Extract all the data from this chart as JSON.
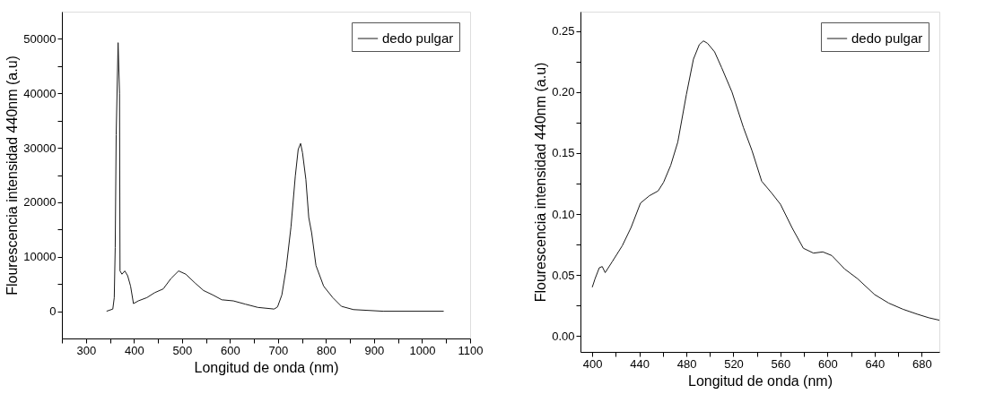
{
  "chart_data": [
    {
      "type": "line",
      "xlabel": "Longitud de onda (nm)",
      "ylabel": "Flourescencia intensidad 440nm (a.u)",
      "xlim": [
        250,
        1100
      ],
      "ylim": [
        -5000,
        55000
      ],
      "xticks": [
        {
          "value": 250,
          "label": null
        },
        300,
        {
          "value": 350,
          "label": null
        },
        400,
        {
          "value": 450,
          "label": null
        },
        500,
        {
          "value": 550,
          "label": null
        },
        600,
        {
          "value": 650,
          "label": null
        },
        700,
        {
          "value": 750,
          "label": null
        },
        800,
        {
          "value": 850,
          "label": null
        },
        900,
        {
          "value": 950,
          "label": null
        },
        1000,
        {
          "value": 1050,
          "label": null
        },
        1100
      ],
      "yticks": [
        0,
        {
          "value": 5000,
          "label": null
        },
        10000,
        {
          "value": 15000,
          "label": null
        },
        20000,
        {
          "value": 25000,
          "label": null
        },
        30000,
        {
          "value": 35000,
          "label": null
        },
        40000,
        {
          "value": 45000,
          "label": null
        },
        50000
      ],
      "legend": "top right",
      "series": [
        {
          "name": "dedo pulgar",
          "color": "#1a1a1a",
          "x": [
            343,
            356,
            359,
            361,
            363,
            367,
            370,
            371,
            375,
            381,
            387,
            393,
            399,
            409,
            427,
            443,
            461,
            477,
            493,
            508,
            527,
            545,
            564,
            583,
            607,
            632,
            658,
            692,
            699,
            708,
            717,
            727,
            736,
            742,
            747,
            751,
            758,
            764,
            770,
            779,
            795,
            814,
            832,
            857,
            919,
            1045
          ],
          "values": [
            0,
            400,
            2500,
            11700,
            32400,
            49300,
            40000,
            7400,
            6800,
            7400,
            6500,
            4600,
            1400,
            1900,
            2500,
            3400,
            4100,
            6000,
            7400,
            6800,
            5200,
            3800,
            3000,
            2100,
            1900,
            1300,
            700,
            400,
            800,
            3000,
            7900,
            15500,
            24800,
            29700,
            30800,
            29100,
            24200,
            17200,
            14400,
            8400,
            4600,
            2500,
            900,
            300,
            0,
            0
          ]
        }
      ]
    },
    {
      "type": "line",
      "xlabel": "Longitud de onda (nm)",
      "ylabel": "Flourescencia intensidad 440nm (a.u)",
      "xlim": [
        390,
        695
      ],
      "ylim": [
        -0.013,
        0.266
      ],
      "xticks": [
        400,
        {
          "value": 420,
          "label": null
        },
        440,
        {
          "value": 460,
          "label": null
        },
        480,
        {
          "value": 500,
          "label": null
        },
        520,
        {
          "value": 540,
          "label": null
        },
        560,
        {
          "value": 580,
          "label": null
        },
        600,
        {
          "value": 620,
          "label": null
        },
        640,
        {
          "value": 660,
          "label": null
        },
        680
      ],
      "yticks": [
        {
          "value": 0,
          "label": "0.00"
        },
        {
          "value": 0.025,
          "label": null
        },
        0.05,
        {
          "value": 0.075,
          "label": null
        },
        {
          "value": 0.1,
          "label": "0.10"
        },
        {
          "value": 0.125,
          "label": null
        },
        0.15,
        {
          "value": 0.175,
          "label": null
        },
        {
          "value": 0.2,
          "label": "0.20"
        },
        {
          "value": 0.225,
          "label": null
        },
        0.25
      ],
      "legend": "top right",
      "series": [
        {
          "name": "dedo pulgar",
          "color": "#1a1a1a",
          "x": [
            400,
            402.4,
            406,
            408.5,
            411,
            417,
            425.5,
            433,
            441,
            448.5,
            456,
            460.6,
            466.7,
            472.7,
            480,
            486,
            491,
            494.5,
            498,
            504,
            510,
            518.8,
            528.5,
            535.8,
            544,
            552.7,
            560,
            569.7,
            579.4,
            588,
            596,
            603.6,
            614.5,
            625.5,
            640,
            652,
            664,
            676,
            686,
            695
          ],
          "values": [
            0.04,
            0.047,
            0.056,
            0.057,
            0.052,
            0.061,
            0.074,
            0.089,
            0.109,
            0.115,
            0.119,
            0.126,
            0.14,
            0.159,
            0.198,
            0.227,
            0.239,
            0.242,
            0.24,
            0.233,
            0.22,
            0.2,
            0.171,
            0.152,
            0.127,
            0.117,
            0.108,
            0.089,
            0.072,
            0.068,
            0.069,
            0.066,
            0.055,
            0.047,
            0.034,
            0.027,
            0.022,
            0.018,
            0.015,
            0.013
          ]
        }
      ]
    }
  ]
}
